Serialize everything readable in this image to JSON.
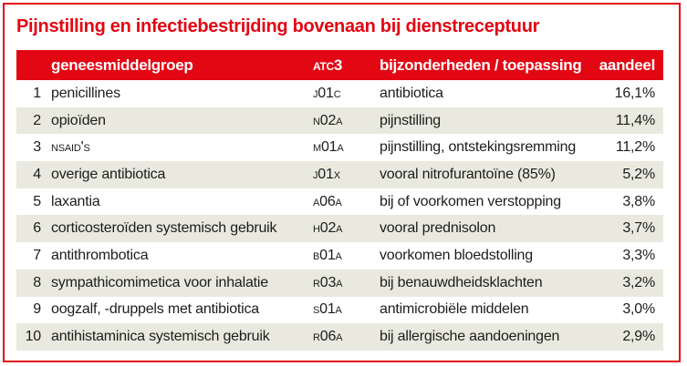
{
  "chart_data": {
    "type": "table",
    "title": "Pijnstilling en infectiebestrijding bovenaan bij dienstreceptuur",
    "columns": [
      {
        "key": "rank",
        "label": "",
        "align": "right",
        "smallcaps": false
      },
      {
        "key": "group",
        "label": "geneesmiddelgroep",
        "align": "left",
        "smallcaps": false
      },
      {
        "key": "atc",
        "label": "ATC3",
        "align": "left",
        "smallcaps": true
      },
      {
        "key": "details",
        "label": "bijzonderheden / toepassing",
        "align": "left",
        "smallcaps": false
      },
      {
        "key": "share",
        "label": "aandeel",
        "align": "right",
        "smallcaps": false
      }
    ],
    "rows": [
      {
        "rank": "1",
        "group": "penicillines",
        "atc": "J01C",
        "details": "antibiotica",
        "share": "16,1%"
      },
      {
        "rank": "2",
        "group": "opioïden",
        "atc": "N02A",
        "details": "pijnstilling",
        "share": "11,4%"
      },
      {
        "rank": "3",
        "group": "NSAID's",
        "group_smallcaps": true,
        "atc": "M01A",
        "details": "pijnstilling, ontstekingsremming",
        "share": "11,2%"
      },
      {
        "rank": "4",
        "group": "overige antibiotica",
        "atc": "J01X",
        "details": "vooral nitrofurantoïne (85%)",
        "share": "5,2%"
      },
      {
        "rank": "5",
        "group": "laxantia",
        "atc": "A06A",
        "details": "bij of voorkomen verstopping",
        "share": "3,8%"
      },
      {
        "rank": "6",
        "group": "corticosteroïden systemisch gebruik",
        "atc": "H02A",
        "details": "vooral prednisolon",
        "share": "3,7%"
      },
      {
        "rank": "7",
        "group": "antithrombotica",
        "atc": "B01A",
        "details": "voorkomen bloedstolling",
        "share": "3,3%"
      },
      {
        "rank": "8",
        "group": "sympathicomimetica voor inhalatie",
        "atc": "R03A",
        "details": "bij benauwdheidsklachten",
        "share": "3,2%"
      },
      {
        "rank": "9",
        "group": "oogzalf, -druppels met antibiotica",
        "atc": "S01A",
        "details": "antimicrobiële middelen",
        "share": "3,0%"
      },
      {
        "rank": "10",
        "group": "antihistaminica systemisch gebruik",
        "atc": "R06A",
        "details": "bij allergische aandoeningen",
        "share": "2,9%"
      }
    ]
  },
  "colors": {
    "accent_red": "#e30613",
    "row_shade": "#e9e9df",
    "header_text": "#ffffff",
    "body_text": "#1d1d1b"
  }
}
